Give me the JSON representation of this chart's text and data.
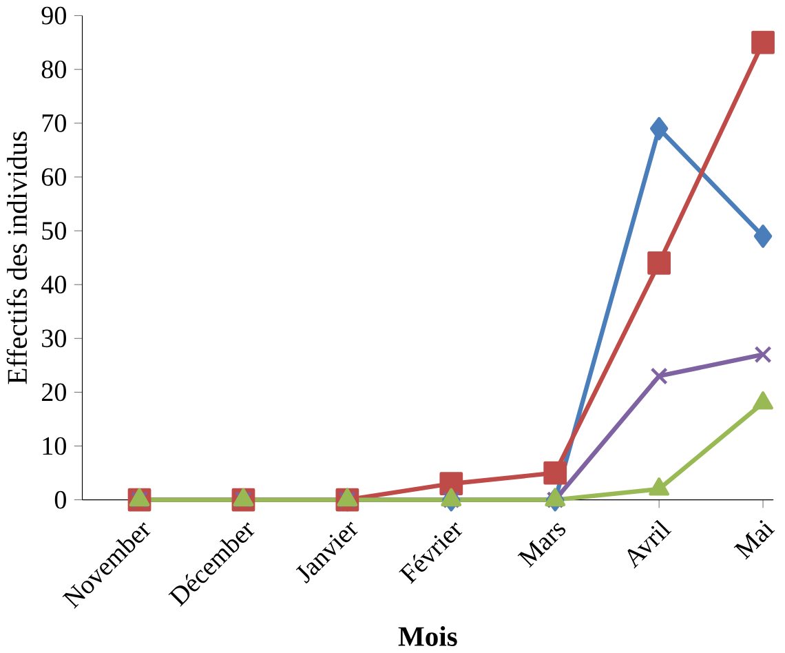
{
  "chart_data": {
    "type": "line",
    "xlabel": "Mois",
    "ylabel": "Effectifs des individus",
    "categories": [
      "November",
      "Décember",
      "Janvier",
      "Février",
      "Mars",
      "Avril",
      "Mai"
    ],
    "series": [
      {
        "color": "#4a7ebb",
        "marker": "diamond",
        "values": [
          null,
          null,
          0,
          0,
          0,
          69,
          49
        ]
      },
      {
        "color": "#be4b48",
        "marker": "square",
        "values": [
          0,
          0,
          0,
          3,
          5,
          44,
          85
        ]
      },
      {
        "color": "#7e62a1",
        "marker": "cross",
        "values": [
          0,
          0,
          0,
          0,
          0,
          23,
          27
        ]
      },
      {
        "color": "#98b954",
        "marker": "triangle",
        "values": [
          0,
          0,
          0,
          0,
          0,
          2,
          18
        ]
      }
    ],
    "ylim": [
      0,
      90
    ],
    "yticks": [
      0,
      10,
      20,
      30,
      40,
      50,
      60,
      70,
      80,
      90
    ],
    "grid": false
  }
}
